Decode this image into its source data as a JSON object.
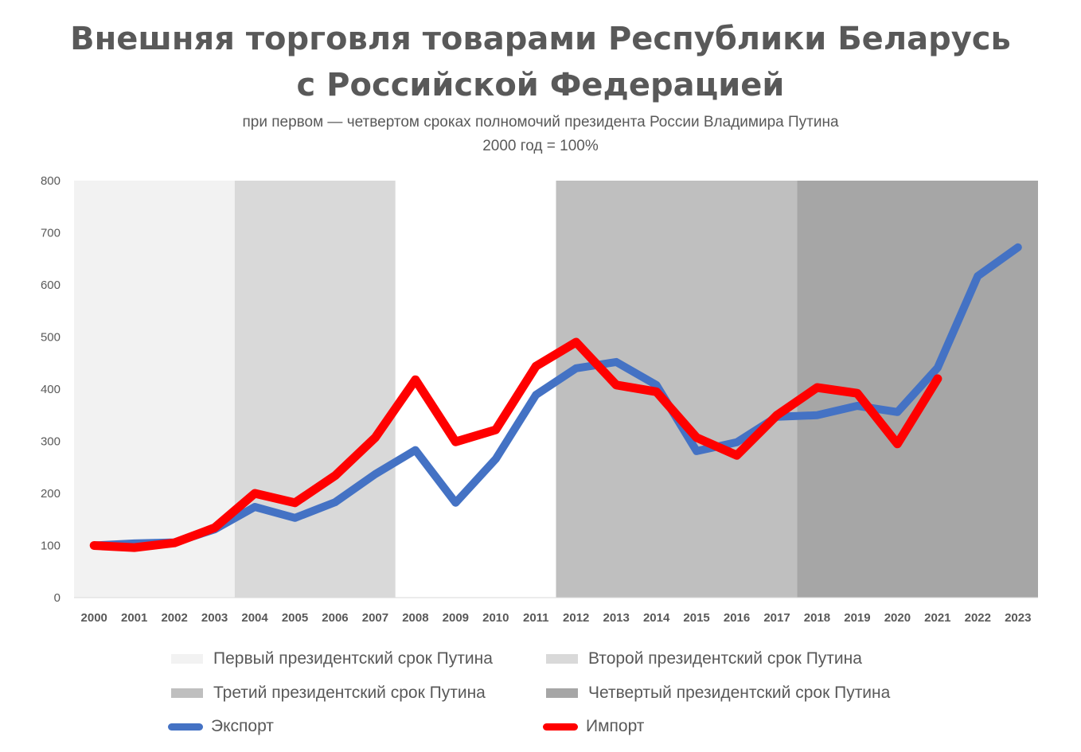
{
  "chart_data": {
    "type": "line",
    "title": "Внешняя торговля товарами Республики Беларусь с Российской Федерацией",
    "title_lines": [
      "Внешняя торговля товарами Республики Беларусь",
      "с Российской Федерацией"
    ],
    "subtitle_lines": [
      "при первом — четвертом сроках полномочий президента России Владимира Путина",
      "2000 год = 100%"
    ],
    "xlabel": "",
    "ylabel": "",
    "ylim": [
      0,
      800
    ],
    "yticks": [
      0,
      100,
      200,
      300,
      400,
      500,
      600,
      700,
      800
    ],
    "categories": [
      "2000",
      "2001",
      "2002",
      "2003",
      "2004",
      "2005",
      "2006",
      "2007",
      "2008",
      "2009",
      "2010",
      "2011",
      "2012",
      "2013",
      "2014",
      "2015",
      "2016",
      "2017",
      "2018",
      "2019",
      "2020",
      "2021",
      "2022",
      "2023"
    ],
    "series": [
      {
        "name": "Экспорт",
        "color": "#4472c4",
        "values": [
          100,
          104,
          106,
          131,
          174,
          153,
          183,
          237,
          283,
          182,
          266,
          389,
          440,
          452,
          408,
          281,
          298,
          347,
          350,
          368,
          356,
          441,
          617,
          672
        ]
      },
      {
        "name": "Импорт",
        "color": "#ff0000",
        "values": [
          100,
          96,
          105,
          134,
          200,
          182,
          234,
          307,
          418,
          299,
          322,
          444,
          490,
          408,
          395,
          307,
          273,
          350,
          403,
          392,
          295,
          420,
          null,
          null
        ]
      }
    ],
    "bands": [
      {
        "name": "Первый президентский срок Путина",
        "from": "2000",
        "to": "2003",
        "color": "#f2f2f2"
      },
      {
        "name": "Второй президентский срок Путина",
        "from": "2004",
        "to": "2007",
        "color": "#d9d9d9"
      },
      {
        "name": "Третий президентский срок Путина",
        "from": "2012",
        "to": "2017",
        "color": "#bfbfbf"
      },
      {
        "name": "Четвертый президентский срок Путина",
        "from": "2018",
        "to": "2023",
        "color": "#a6a6a6"
      }
    ],
    "grid": false,
    "legend_position": "bottom"
  }
}
